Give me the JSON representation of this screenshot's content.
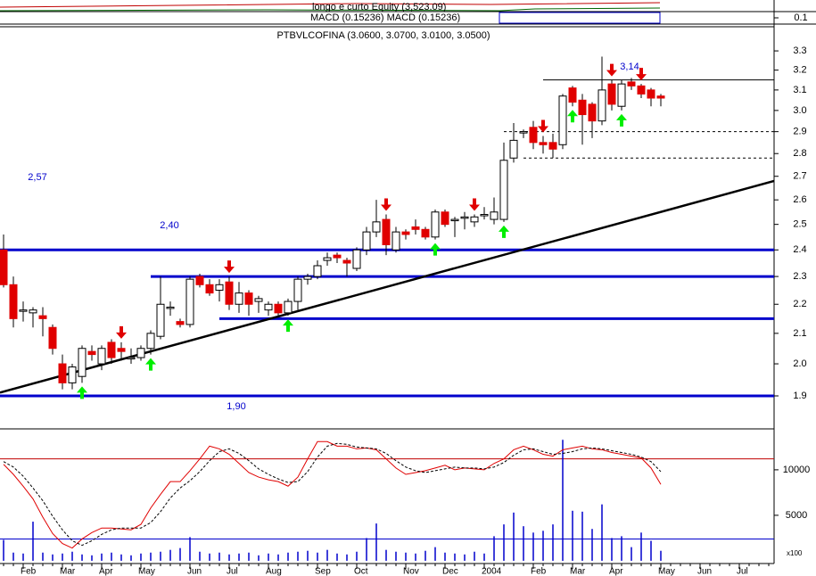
{
  "top_strip": {
    "labels": [
      "longo e curto Equity (3,523.09)",
      "MACD (0.15236) MACD (0.15236)"
    ],
    "yticks": [
      0.1
    ]
  },
  "chart_data": [
    {
      "type": "candlestick",
      "title": "PTBVLCOFINA (3.0600, 3.0700, 3.0100, 3.0500)",
      "log_scale": true,
      "ylim": [
        1.81,
        3.43
      ],
      "yticks": [
        3.3,
        3.2,
        3.1,
        {
          "value": 3,
          "label": "3.0"
        },
        2.9,
        2.8,
        2.7,
        2.6,
        2.5,
        2.4,
        2.3,
        2.2,
        2.1,
        {
          "value": 2,
          "label": "2.0"
        },
        1.9
      ],
      "up_color": "#ffffff",
      "down_color": "#e00000",
      "categories": [
        null,
        null,
        "Feb",
        null,
        null,
        null,
        "Mar",
        null,
        null,
        null,
        "Apr",
        null,
        null,
        null,
        "May",
        null,
        null,
        null,
        null,
        "Jun",
        null,
        null,
        null,
        "Jul",
        null,
        null,
        null,
        "Aug",
        null,
        null,
        null,
        null,
        "Sep",
        null,
        null,
        null,
        "Oct",
        null,
        null,
        null,
        null,
        "Nov",
        null,
        null,
        null,
        "Dec",
        null,
        null,
        null,
        "2004",
        null,
        null,
        null,
        null,
        "Feb",
        null,
        null,
        null,
        "Mar",
        null,
        null,
        null,
        "Apr",
        null,
        null,
        null,
        null,
        "May",
        null,
        null,
        null,
        "Jun",
        null,
        null,
        null,
        "Jul",
        null,
        null,
        null
      ],
      "open": [
        2.4,
        2.27,
        2.18,
        2.17,
        2.16,
        2.12,
        2.0,
        1.94,
        1.96,
        2.04,
        2.0,
        2.07,
        2.05,
        2.02,
        2.02,
        2.05,
        2.09,
        2.19,
        2.14,
        2.13,
        2.3,
        2.27,
        2.25,
        2.28,
        2.2,
        2.24,
        2.21,
        2.18,
        2.2,
        2.17,
        2.21,
        2.29,
        2.3,
        2.36,
        2.38,
        2.36,
        2.33,
        2.4,
        2.47,
        2.52,
        2.4,
        2.47,
        2.49,
        2.48,
        2.45,
        2.55,
        2.52,
        2.53,
        2.51,
        2.54,
        2.52,
        2.52,
        2.78,
        2.9,
        2.92,
        2.85,
        2.85,
        2.84,
        3.11,
        3.05,
        3.03,
        2.95,
        3.13,
        3.02,
        3.14,
        3.12,
        3.1,
        3.07,
        null,
        null,
        null,
        null,
        null,
        null,
        null,
        null,
        null,
        null,
        null
      ],
      "high": [
        2.46,
        2.3,
        2.21,
        2.19,
        2.19,
        2.13,
        2.03,
        2.0,
        2.06,
        2.06,
        2.06,
        2.08,
        2.07,
        2.05,
        2.06,
        2.11,
        2.3,
        2.21,
        2.15,
        2.3,
        2.31,
        2.29,
        2.29,
        2.3,
        2.28,
        2.25,
        2.23,
        2.21,
        2.21,
        2.22,
        2.3,
        2.31,
        2.36,
        2.39,
        2.39,
        2.37,
        2.41,
        2.49,
        2.6,
        2.54,
        2.49,
        2.48,
        2.52,
        2.49,
        2.56,
        2.56,
        2.53,
        2.55,
        2.54,
        2.57,
        2.61,
        2.85,
        2.94,
        2.91,
        2.95,
        2.88,
        2.89,
        3.08,
        3.12,
        3.08,
        3.04,
        3.27,
        3.15,
        3.15,
        3.16,
        3.13,
        3.11,
        3.08,
        null,
        null,
        null,
        null,
        null,
        null,
        null,
        null,
        null,
        null,
        null
      ],
      "low": [
        2.26,
        2.12,
        2.14,
        2.12,
        2.09,
        2.03,
        1.92,
        1.92,
        1.94,
        2.01,
        1.98,
        2.0,
        2.01,
        2.0,
        2.01,
        2.03,
        2.08,
        2.16,
        2.12,
        2.12,
        2.26,
        2.23,
        2.21,
        2.18,
        2.17,
        2.16,
        2.17,
        2.16,
        2.16,
        2.16,
        2.18,
        2.27,
        2.29,
        2.34,
        2.35,
        2.3,
        2.32,
        2.38,
        2.45,
        2.38,
        2.39,
        2.44,
        2.46,
        2.44,
        2.44,
        2.49,
        2.45,
        2.48,
        2.49,
        2.52,
        2.5,
        2.51,
        2.76,
        2.87,
        2.82,
        2.8,
        2.78,
        2.82,
        3.02,
        2.84,
        2.87,
        2.93,
        3.0,
        3.0,
        3.1,
        3.06,
        3.02,
        3.02,
        null,
        null,
        null,
        null,
        null,
        null,
        null,
        null,
        null,
        null,
        null
      ],
      "close": [
        2.27,
        2.15,
        2.18,
        2.18,
        2.15,
        2.05,
        1.94,
        1.99,
        2.05,
        2.03,
        2.05,
        2.02,
        2.04,
        2.02,
        2.05,
        2.1,
        2.2,
        2.19,
        2.13,
        2.29,
        2.27,
        2.24,
        2.27,
        2.2,
        2.24,
        2.2,
        2.22,
        2.2,
        2.17,
        2.21,
        2.29,
        2.3,
        2.34,
        2.37,
        2.37,
        2.35,
        2.4,
        2.47,
        2.51,
        2.42,
        2.47,
        2.46,
        2.48,
        2.45,
        2.55,
        2.5,
        2.52,
        2.53,
        2.53,
        2.54,
        2.55,
        2.77,
        2.86,
        2.9,
        2.85,
        2.84,
        2.82,
        3.07,
        3.04,
        2.98,
        2.95,
        3.1,
        3.03,
        3.13,
        3.12,
        3.08,
        3.06,
        3.06,
        null,
        null,
        null,
        null,
        null,
        null,
        null,
        null,
        null,
        null,
        null
      ],
      "hlines": [
        {
          "value": 2.4,
          "start": 0,
          "color": "#0000cc",
          "style": "thick"
        },
        {
          "value": 2.3,
          "start": 15,
          "color": "#0000cc",
          "style": "thick"
        },
        {
          "value": 2.15,
          "start": 22,
          "color": "#0000cc",
          "style": "thick"
        },
        {
          "value": 1.9,
          "start": 0,
          "color": "#0000cc",
          "style": "thick"
        },
        {
          "value": 3.15,
          "start": 55,
          "color": "#000000",
          "style": "thin"
        },
        {
          "value": 2.9,
          "start": 51,
          "color": "#000000",
          "style": "dashed"
        },
        {
          "value": 2.78,
          "start": 53,
          "color": "#000000",
          "style": "dashed"
        }
      ],
      "trendline": {
        "x": [
          0,
          78
        ],
        "y": [
          1.91,
          2.68
        ],
        "color": "#000000"
      },
      "sell_signals": [
        12,
        23,
        39,
        48,
        55,
        62,
        65
      ],
      "buy_signals": [
        8,
        15,
        29,
        44,
        51,
        58,
        63
      ],
      "sell_color": "#e00000",
      "buy_color": "#00ee00",
      "annotations": [
        "2,57",
        "2,40",
        "1,90",
        "3,14"
      ]
    },
    {
      "type": "line",
      "ylim": [
        -300,
        14400
      ],
      "yticks": [
        10000,
        5000
      ],
      "unit_label": "x100",
      "series": [
        {
          "color": "#e00000",
          "style": "solid",
          "values": [
            10600,
            9500,
            8200,
            6800,
            4800,
            3000,
            1900,
            1400,
            2400,
            3100,
            3600,
            3600,
            3500,
            3400,
            4000,
            5800,
            7300,
            8700,
            8700,
            9900,
            11200,
            12600,
            12300,
            11700,
            10700,
            9700,
            9200,
            8900,
            8700,
            8200,
            9200,
            11200,
            13100,
            13100,
            12600,
            12600,
            12300,
            12400,
            12200,
            11200,
            10200,
            9500,
            9700,
            9900,
            10200,
            10500,
            10000,
            10200,
            10100,
            10000,
            10700,
            11200,
            12200,
            12600,
            12200,
            11700,
            11500,
            12200,
            12400,
            12600,
            12300,
            12200,
            11900,
            11700,
            11500,
            11300,
            10200,
            8400,
            null,
            null,
            null,
            null,
            null,
            null,
            null,
            null,
            null,
            null,
            null
          ]
        },
        {
          "color": "#000000",
          "style": "dashed",
          "values": [
            10900,
            10300,
            9300,
            8000,
            6600,
            4900,
            3400,
            2200,
            1700,
            2200,
            2900,
            3400,
            3600,
            3600,
            3600,
            4200,
            5400,
            6900,
            8000,
            8800,
            9800,
            11000,
            12000,
            12300,
            11800,
            11000,
            10100,
            9500,
            9000,
            8600,
            8700,
            9800,
            11400,
            12600,
            12900,
            12800,
            12500,
            12400,
            12300,
            11800,
            11000,
            10300,
            9900,
            9700,
            9900,
            10100,
            10300,
            10200,
            10200,
            10100,
            10300,
            10800,
            11600,
            12200,
            12300,
            12000,
            11700,
            11800,
            12000,
            12300,
            12400,
            12300,
            12100,
            11900,
            11700,
            11400,
            10900,
            9800,
            null,
            null,
            null,
            null,
            null,
            null,
            null,
            null,
            null,
            null,
            null
          ]
        }
      ],
      "volume": {
        "color": "#0000cc",
        "values": [
          2300,
          900,
          800,
          4300,
          900,
          700,
          800,
          1000,
          700,
          600,
          800,
          900,
          700,
          600,
          800,
          900,
          1000,
          1200,
          1400,
          2600,
          1000,
          800,
          900,
          700,
          800,
          900,
          600,
          800,
          700,
          900,
          1000,
          1100,
          900,
          1200,
          800,
          700,
          1000,
          2500,
          4100,
          1200,
          1000,
          900,
          800,
          1100,
          1500,
          900,
          800,
          700,
          1000,
          800,
          2700,
          4000,
          5300,
          3800,
          3100,
          3300,
          4000,
          13300,
          5500,
          5400,
          3500,
          6200,
          2500,
          2700,
          1500,
          3100,
          2200,
          1100,
          null,
          null,
          null,
          null,
          null,
          null,
          null,
          null,
          null,
          null,
          null
        ]
      },
      "hlines": [
        {
          "value": 11200,
          "color": "#c00000"
        },
        {
          "value": 2400,
          "color": "#0000cc"
        }
      ]
    }
  ]
}
